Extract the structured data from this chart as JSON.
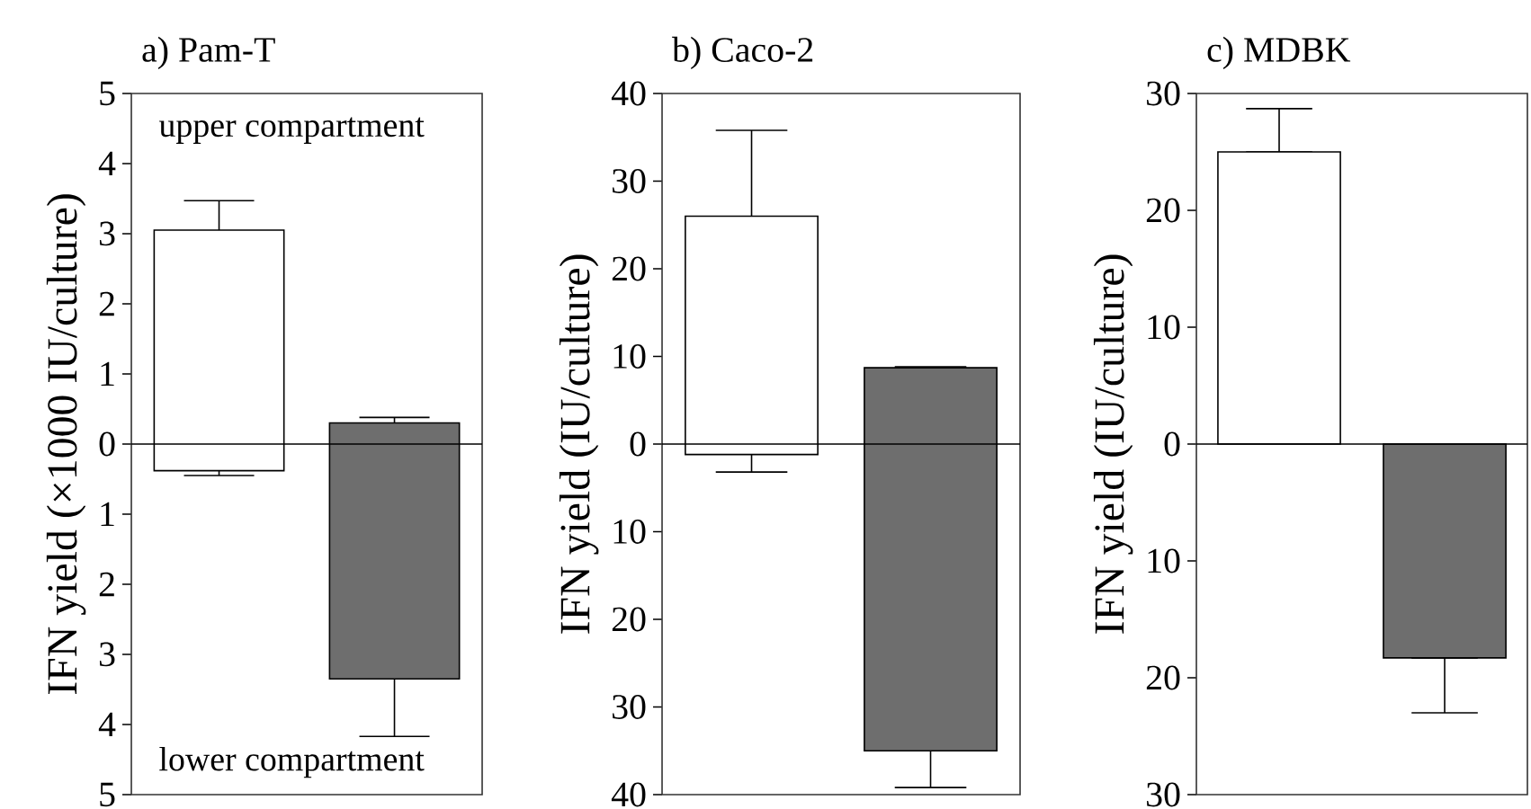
{
  "chart_data": [
    {
      "type": "bar",
      "title": "a) Pam-T",
      "ylabel": "IFN yield (×1000 IU/culture)",
      "categories": [
        null,
        null
      ],
      "values": [
        3.43,
        3.65
      ],
      "base": [
        -0.38,
        -3.35
      ],
      "colors": [
        "#ffffff",
        "#6e6e6e"
      ],
      "errors": [
        [
          -0.45,
          3.47
        ],
        [
          -4.17,
          0.38
        ]
      ],
      "ylim": [
        -5,
        5
      ],
      "yticks": [
        {
          "value": -5,
          "label": "5"
        },
        {
          "value": -4,
          "label": "4"
        },
        {
          "value": -3,
          "label": "3"
        },
        {
          "value": -2,
          "label": "2"
        },
        {
          "value": -1,
          "label": "1"
        },
        0,
        1,
        2,
        3,
        4,
        5
      ],
      "ref_lines": [
        {
          "axis": "y",
          "value": 0
        }
      ],
      "annotations": [
        "upper compartment",
        "lower compartment"
      ]
    },
    {
      "type": "bar",
      "title": "b) Caco-2",
      "ylabel": "IFN yield (IU/culture)",
      "categories": [
        null,
        null
      ],
      "values": [
        27.2,
        43.7
      ],
      "base": [
        -1.2,
        -35
      ],
      "colors": [
        "#ffffff",
        "#6e6e6e"
      ],
      "errors": [
        [
          -3.2,
          35.8
        ],
        [
          -39.2,
          8.8
        ]
      ],
      "ylim": [
        -40,
        40
      ],
      "yticks": [
        {
          "value": -40,
          "label": "40"
        },
        {
          "value": -30,
          "label": "30"
        },
        {
          "value": -20,
          "label": "20"
        },
        {
          "value": -10,
          "label": "10"
        },
        0,
        10,
        20,
        30,
        40
      ],
      "ref_lines": [
        {
          "axis": "y",
          "value": 0
        }
      ]
    },
    {
      "type": "bar",
      "title": "c) MDBK",
      "ylabel": "IFN yield (IU/culture)",
      "categories": [
        null,
        null
      ],
      "values": [
        25,
        -18.3
      ],
      "base": [
        0,
        0
      ],
      "colors": [
        "#ffffff",
        "#6e6e6e"
      ],
      "errors": [
        [
          25,
          28.7
        ],
        [
          -23,
          -18.3
        ]
      ],
      "ylim": [
        -30,
        30
      ],
      "yticks": [
        {
          "value": -30,
          "label": "30"
        },
        {
          "value": -20,
          "label": "20"
        },
        {
          "value": -10,
          "label": "10"
        },
        0,
        10,
        20,
        30
      ],
      "ref_lines": [
        {
          "axis": "y",
          "value": 0
        }
      ]
    }
  ]
}
